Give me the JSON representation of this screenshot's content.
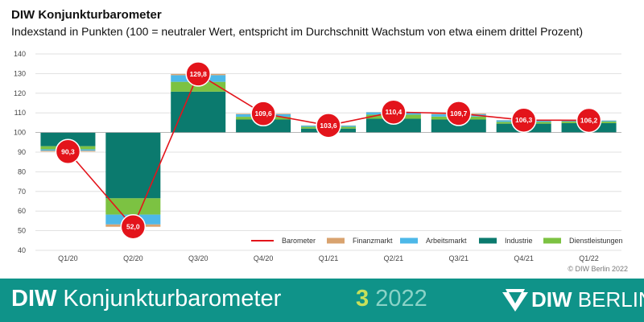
{
  "header": {
    "title": "DIW Konjunkturbarometer",
    "subtitle": "Indexstand in Punkten (100 = neutraler Wert, entspricht im Durchschnitt Wachstum von etwa einem drittel Prozent)"
  },
  "chart_data": {
    "type": "bar",
    "title": "DIW Konjunkturbarometer",
    "subtitle": "Indexstand in Punkten (100 = neutraler Wert, entspricht im Durchschnitt Wachstum von etwa einem drittel Prozent)",
    "xlabel": "",
    "ylabel": "",
    "ylim": [
      40,
      140
    ],
    "yticks": [
      40,
      50,
      60,
      70,
      80,
      90,
      100,
      110,
      120,
      130,
      140
    ],
    "baseline": 100,
    "grid": true,
    "legend_position": "bottom-right",
    "categories": [
      "Q1/20",
      "Q2/20",
      "Q3/20",
      "Q4/20",
      "Q1/21",
      "Q2/21",
      "Q3/21",
      "Q4/21",
      "Q1/22"
    ],
    "series": [
      {
        "name": "Industrie",
        "type": "bar",
        "color": "#0b7a6e",
        "values": [
          -7.0,
          -33.5,
          20.8,
          6.6,
          2.0,
          7.0,
          6.6,
          4.5,
          4.8
        ]
      },
      {
        "name": "Dienstleistungen",
        "type": "bar",
        "color": "#7cc242",
        "values": [
          -1.6,
          -8.3,
          5.0,
          1.4,
          0.9,
          2.1,
          1.5,
          0.9,
          0.8
        ]
      },
      {
        "name": "Arbeitsmarkt",
        "type": "bar",
        "color": "#4db8e8",
        "values": [
          -0.7,
          -5.0,
          3.4,
          1.3,
          0.6,
          1.2,
          1.2,
          0.8,
          0.5
        ]
      },
      {
        "name": "Finanzmarkt",
        "type": "bar",
        "color": "#d9a36f",
        "values": [
          -0.4,
          -1.2,
          0.6,
          0.3,
          0.1,
          0.1,
          0.4,
          0.1,
          0.1
        ]
      },
      {
        "name": "Barometer",
        "type": "line",
        "color": "#e3141b",
        "values": [
          90.3,
          52.0,
          129.8,
          109.6,
          103.6,
          110.4,
          109.7,
          106.3,
          106.2
        ],
        "labels": [
          "90,3",
          "52,0",
          "129,8",
          "109,6",
          "103,6",
          "110,4",
          "109,7",
          "106,3",
          "106,2"
        ]
      }
    ],
    "legend": [
      "Barometer",
      "Finanzmarkt",
      "Arbeitsmarkt",
      "Industrie",
      "Dienstleistungen"
    ]
  },
  "source": "© DIW Berlin 2022",
  "footer": {
    "brand_bold": "DIW",
    "brand_rest": " Konjunkturbarometer",
    "issue_number": "3",
    "issue_year": "2022",
    "logo_bold": "DIW",
    "logo_rest": " BERLIN"
  }
}
